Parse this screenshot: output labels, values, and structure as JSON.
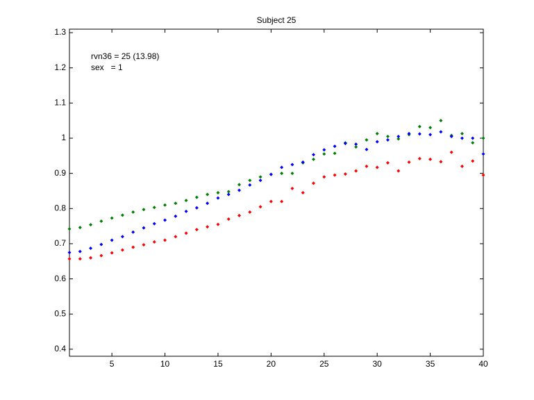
{
  "chart_data": {
    "type": "scatter",
    "title": "Subject 25",
    "annotations": [
      "rvn36 = 25 (13.98)",
      "sex   = 1"
    ],
    "x": [
      1,
      2,
      3,
      4,
      5,
      6,
      7,
      8,
      9,
      10,
      11,
      12,
      13,
      14,
      15,
      16,
      17,
      18,
      19,
      20,
      21,
      22,
      23,
      24,
      25,
      26,
      27,
      28,
      29,
      30,
      31,
      32,
      33,
      34,
      35,
      36,
      37,
      38,
      39,
      40
    ],
    "series": [
      {
        "color": "#008000",
        "values": [
          0.742,
          0.746,
          0.754,
          0.764,
          0.773,
          0.781,
          0.79,
          0.797,
          0.803,
          0.81,
          0.815,
          0.823,
          0.832,
          0.84,
          0.845,
          0.848,
          0.868,
          0.88,
          0.89,
          0.897,
          0.9,
          0.9,
          0.93,
          0.94,
          0.955,
          0.957,
          0.987,
          0.975,
          0.995,
          1.013,
          1.005,
          0.998,
          1.01,
          1.033,
          1.03,
          1.05,
          1.008,
          1.013,
          0.987,
          1.0
        ]
      },
      {
        "color": "#0000ff",
        "values": [
          0.675,
          0.678,
          0.687,
          0.698,
          0.71,
          0.72,
          0.733,
          0.745,
          0.757,
          0.767,
          0.778,
          0.792,
          0.802,
          0.815,
          0.83,
          0.84,
          0.852,
          0.867,
          0.88,
          0.897,
          0.917,
          0.925,
          0.932,
          0.953,
          0.967,
          0.977,
          0.985,
          0.983,
          0.968,
          0.99,
          0.995,
          1.005,
          1.013,
          1.012,
          1.01,
          1.018,
          1.005,
          1.0,
          1.0,
          0.955
        ]
      },
      {
        "color": "#ff0000",
        "values": [
          0.657,
          0.657,
          0.66,
          0.666,
          0.674,
          0.682,
          0.69,
          0.697,
          0.705,
          0.71,
          0.72,
          0.73,
          0.74,
          0.748,
          0.755,
          0.77,
          0.78,
          0.79,
          0.805,
          0.82,
          0.82,
          0.857,
          0.845,
          0.872,
          0.89,
          0.895,
          0.898,
          0.907,
          0.92,
          0.917,
          0.93,
          0.907,
          0.932,
          0.942,
          0.94,
          0.933,
          0.96,
          0.92,
          0.935,
          0.895
        ]
      }
    ],
    "xlim": [
      1,
      40
    ],
    "xticks": [
      5,
      10,
      15,
      20,
      25,
      30,
      35,
      40
    ],
    "ylim": [
      0.38,
      1.31
    ],
    "yticks": [
      0.4,
      0.5,
      0.6,
      0.7,
      0.8,
      0.9,
      1,
      1.1,
      1.2,
      1.3
    ],
    "grid": false
  }
}
